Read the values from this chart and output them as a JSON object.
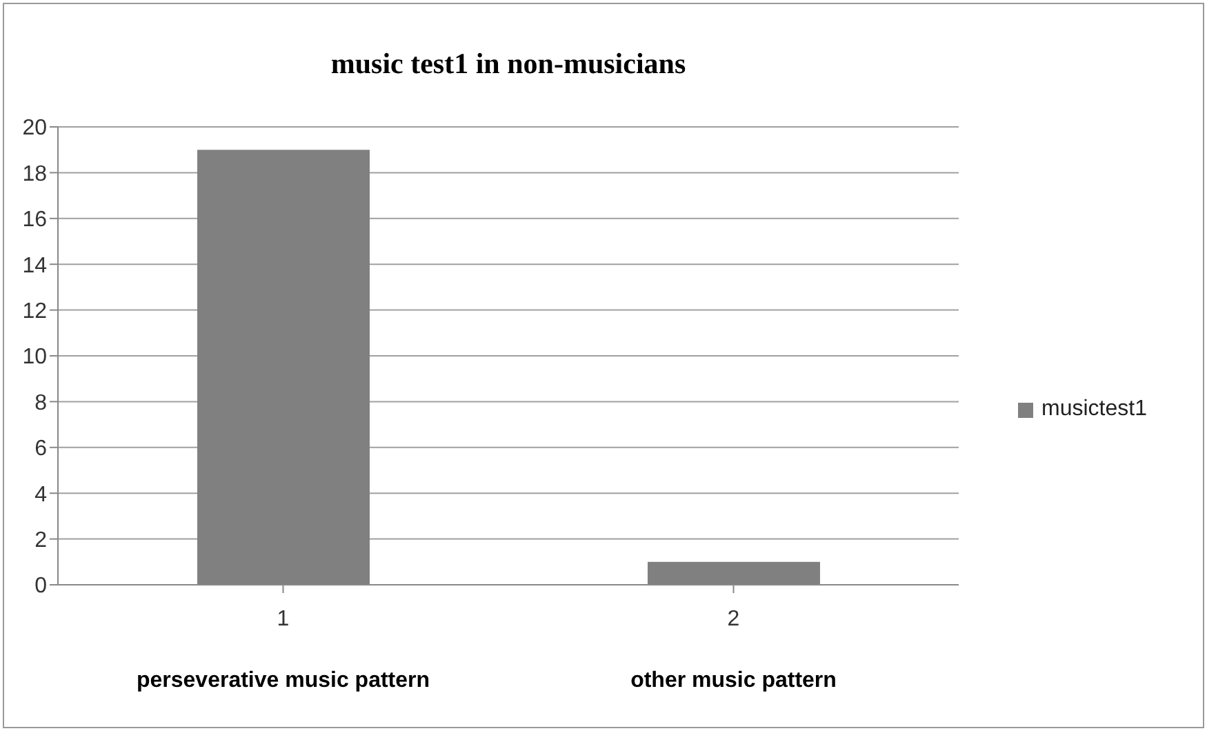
{
  "chart_data": {
    "type": "bar",
    "title": "music test1 in non-musicians",
    "categories": [
      "1",
      "2"
    ],
    "series": [
      {
        "name": "musictest1",
        "color": "#808080",
        "values": [
          19,
          1
        ]
      }
    ],
    "annotations": [
      "perseverative music pattern",
      "other music pattern"
    ],
    "ylim": [
      0,
      20
    ],
    "yticks": [
      0,
      2,
      4,
      6,
      8,
      10,
      12,
      14,
      16,
      18,
      20
    ],
    "grid": "y",
    "legend": "right"
  }
}
